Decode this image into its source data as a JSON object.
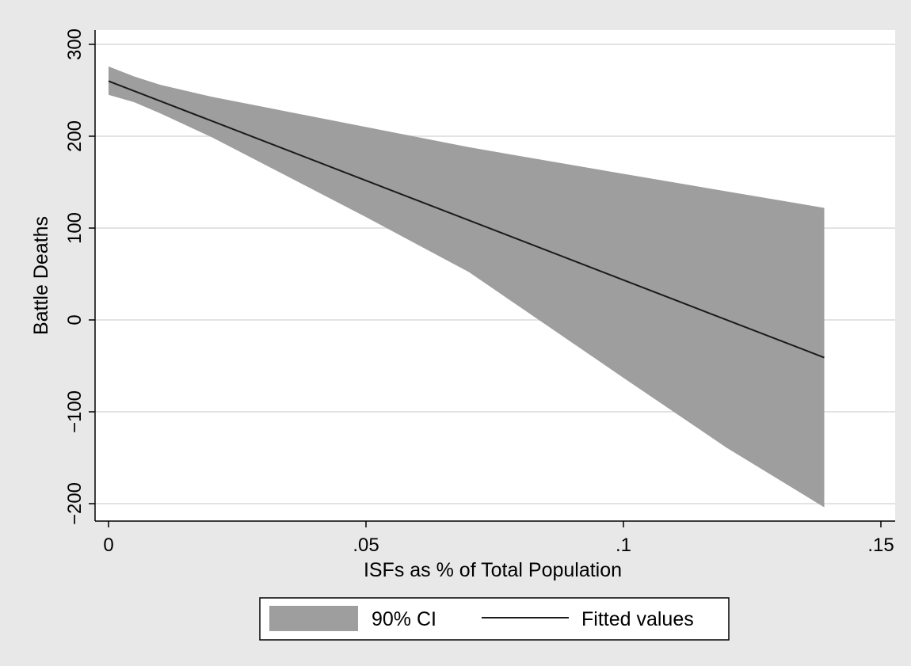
{
  "chart_data": {
    "type": "line",
    "xlabel": "ISFs as % of Total Population",
    "ylabel": "Battle Deaths",
    "xlim": [
      0,
      0.15
    ],
    "ylim": [
      -200,
      300
    ],
    "x_ticks": [
      {
        "value": 0,
        "label": "0"
      },
      {
        "value": 0.05,
        "label": ".05"
      },
      {
        "value": 0.1,
        "label": ".1"
      },
      {
        "value": 0.15,
        "label": ".15"
      }
    ],
    "y_ticks": [
      {
        "value": -200,
        "label": "−200"
      },
      {
        "value": -100,
        "label": "−100"
      },
      {
        "value": 0,
        "label": "0"
      },
      {
        "value": 100,
        "label": "100"
      },
      {
        "value": 200,
        "label": "200"
      },
      {
        "value": 300,
        "label": "300"
      }
    ],
    "grid": true,
    "legend_position": "bottom",
    "series": [
      {
        "name": "90% CI",
        "kind": "area",
        "color": "#9e9e9e",
        "x": [
          0,
          0.005,
          0.01,
          0.02,
          0.03,
          0.05,
          0.07,
          0.1,
          0.12,
          0.139
        ],
        "upper": [
          276,
          265,
          256,
          243,
          232,
          210,
          188,
          159,
          140,
          122
        ],
        "lower": [
          245,
          237,
          225,
          199,
          170,
          112,
          52,
          -63,
          -139,
          -204
        ]
      },
      {
        "name": "Fitted values",
        "kind": "line",
        "color": "#1a1a1a",
        "x": [
          0,
          0.139
        ],
        "y": [
          260,
          -41
        ]
      }
    ]
  },
  "colors": {
    "page_background": "#e8e8e8",
    "plot_background": "#ffffff",
    "gridline": "#e3e3e3"
  }
}
